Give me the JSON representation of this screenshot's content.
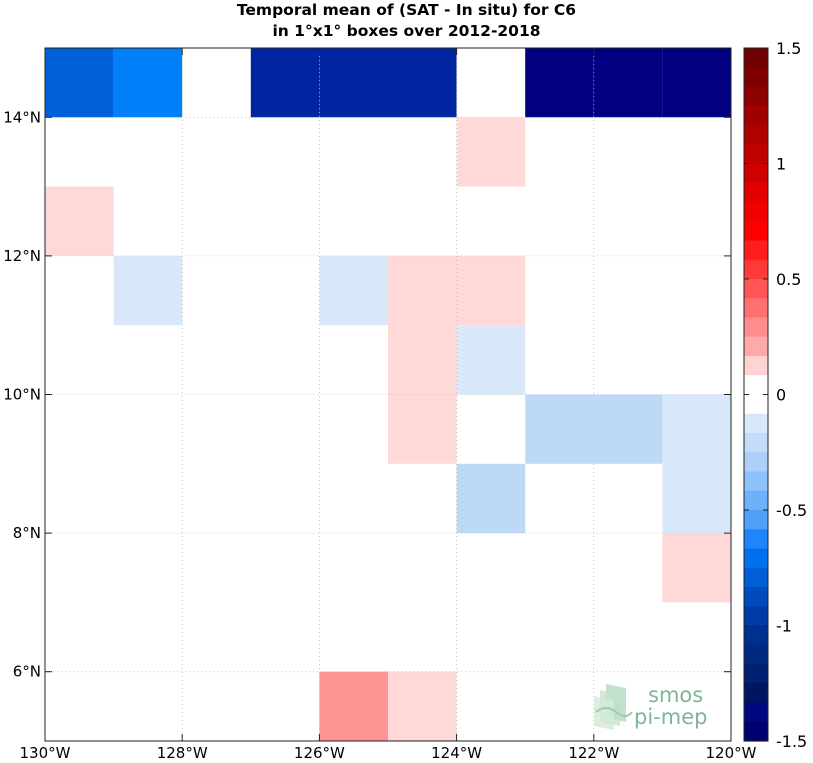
{
  "chart_data": {
    "type": "heatmap",
    "title_lines": [
      "Temporal mean of (SAT - In situ) for C6",
      "in 1°x1° boxes over 2012-2018"
    ],
    "xlim": [
      -130,
      -120
    ],
    "ylim": [
      5,
      15
    ],
    "xticks": [
      {
        "value": -130,
        "label": "130°W"
      },
      {
        "value": -128,
        "label": "128°W"
      },
      {
        "value": -126,
        "label": "126°W"
      },
      {
        "value": -124,
        "label": "124°W"
      },
      {
        "value": -122,
        "label": "122°W"
      },
      {
        "value": -120,
        "label": "120°W"
      }
    ],
    "yticks": [
      {
        "value": 6,
        "label": "6°N"
      },
      {
        "value": 8,
        "label": "8°N"
      },
      {
        "value": 10,
        "label": "10°N"
      },
      {
        "value": 12,
        "label": "12°N"
      },
      {
        "value": 14,
        "label": "14°N"
      }
    ],
    "grid": true,
    "colorbar": {
      "range": [
        -1.5,
        1.5
      ],
      "ticks": [
        {
          "value": 1.5,
          "label": "1.5"
        },
        {
          "value": 1.0,
          "label": "1"
        },
        {
          "value": 0.5,
          "label": "0.5"
        },
        {
          "value": 0.0,
          "label": "0"
        },
        {
          "value": -0.5,
          "label": "-0.5"
        },
        {
          "value": -1.0,
          "label": "-1"
        },
        {
          "value": -1.5,
          "label": "-1.5"
        }
      ],
      "colors_top_to_bottom": [
        "#6e0000",
        "#7f0000",
        "#8f0000",
        "#a00000",
        "#b00000",
        "#c10000",
        "#d10000",
        "#e20000",
        "#f20000",
        "#ff0000",
        "#ff1c1c",
        "#ff3838",
        "#ff5555",
        "#ff7171",
        "#ff8e8e",
        "#ffaaaa",
        "#ffd3d3",
        "#ffffff",
        "#ffffff",
        "#d8e8fa",
        "#c2dcfa",
        "#acd0fa",
        "#8ec0fa",
        "#6fb0fa",
        "#50a0fa",
        "#1f85fa",
        "#0070ee",
        "#005ed6",
        "#004cbe",
        "#003aa6",
        "#00308e",
        "#002a80",
        "#002070",
        "#001460",
        "#000880",
        "#000070"
      ]
    },
    "cells": [
      {
        "lon": -130,
        "lat": 14,
        "value": -1.0,
        "color": "#0060d8"
      },
      {
        "lon": -129,
        "lat": 14,
        "value": -0.8,
        "color": "#0080f8"
      },
      {
        "lon": -127,
        "lat": 14,
        "value": -1.3,
        "color": "#0025a0"
      },
      {
        "lon": -126,
        "lat": 14,
        "value": -1.3,
        "color": "#0025a0"
      },
      {
        "lon": -125,
        "lat": 14,
        "value": -1.3,
        "color": "#0025a0"
      },
      {
        "lon": -123,
        "lat": 14,
        "value": -1.5,
        "color": "#000080"
      },
      {
        "lon": -122,
        "lat": 14,
        "value": -1.5,
        "color": "#000080"
      },
      {
        "lon": -121,
        "lat": 14,
        "value": -1.5,
        "color": "#000080"
      },
      {
        "lon": -124,
        "lat": 13,
        "value": 0.1,
        "color": "#ffd8d8"
      },
      {
        "lon": -130,
        "lat": 12,
        "value": 0.1,
        "color": "#ffd8d8"
      },
      {
        "lon": -129,
        "lat": 11,
        "value": -0.1,
        "color": "#d8e8fa"
      },
      {
        "lon": -126,
        "lat": 11,
        "value": -0.1,
        "color": "#d8e8fa"
      },
      {
        "lon": -125,
        "lat": 11,
        "value": 0.1,
        "color": "#ffd8d8"
      },
      {
        "lon": -124,
        "lat": 11,
        "value": 0.1,
        "color": "#ffd8d8"
      },
      {
        "lon": -125,
        "lat": 10,
        "value": 0.1,
        "color": "#ffd8d8"
      },
      {
        "lon": -124,
        "lat": 10,
        "value": -0.1,
        "color": "#d8e8fa"
      },
      {
        "lon": -125,
        "lat": 9,
        "value": 0.1,
        "color": "#ffd8d8"
      },
      {
        "lon": -123,
        "lat": 9,
        "value": -0.2,
        "color": "#bcdaf8"
      },
      {
        "lon": -122,
        "lat": 9,
        "value": -0.2,
        "color": "#bcdaf8"
      },
      {
        "lon": -121,
        "lat": 9,
        "value": -0.1,
        "color": "#d8e8fa"
      },
      {
        "lon": -124,
        "lat": 8,
        "value": -0.2,
        "color": "#bcdaf8"
      },
      {
        "lon": -121,
        "lat": 8,
        "value": -0.1,
        "color": "#d8e8fa"
      },
      {
        "lon": -121,
        "lat": 7,
        "value": 0.1,
        "color": "#ffd8d8"
      },
      {
        "lon": -126,
        "lat": 5,
        "value": 0.3,
        "color": "#ff9494"
      },
      {
        "lon": -125,
        "lat": 5,
        "value": 0.1,
        "color": "#ffd8d8"
      }
    ]
  },
  "logo": {
    "line1": "smos",
    "line2": "pi-mep"
  }
}
